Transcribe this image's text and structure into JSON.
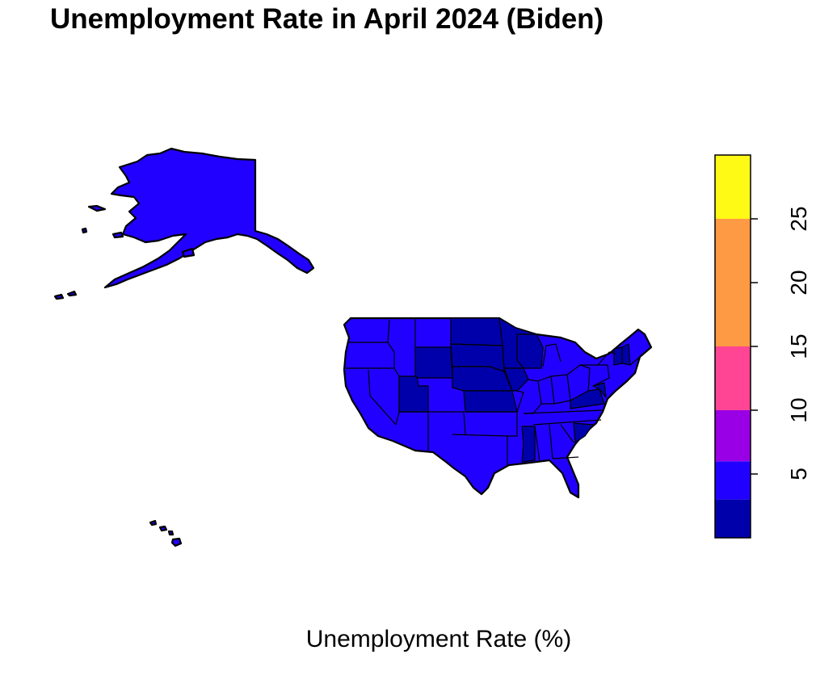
{
  "title": "Unemployment Rate in April 2024 (Biden)",
  "xlabel": "Unemployment Rate (%)",
  "colors": {
    "low": "#0000AA",
    "mid": "#2200FF",
    "outline": "#000000"
  },
  "legend": {
    "bins": [
      {
        "from": 0,
        "to": 3,
        "color": "#0000AA"
      },
      {
        "from": 3,
        "to": 6,
        "color": "#2200FF"
      },
      {
        "from": 6,
        "to": 10,
        "color": "#9A00E5"
      },
      {
        "from": 10,
        "to": 15,
        "color": "#FF4593"
      },
      {
        "from": 15,
        "to": 25,
        "color": "#FF9A44"
      },
      {
        "from": 25,
        "to": 30,
        "color": "#FFF916"
      }
    ],
    "range": [
      0,
      30
    ],
    "ticks": [
      5,
      10,
      15,
      20,
      25
    ]
  }
}
